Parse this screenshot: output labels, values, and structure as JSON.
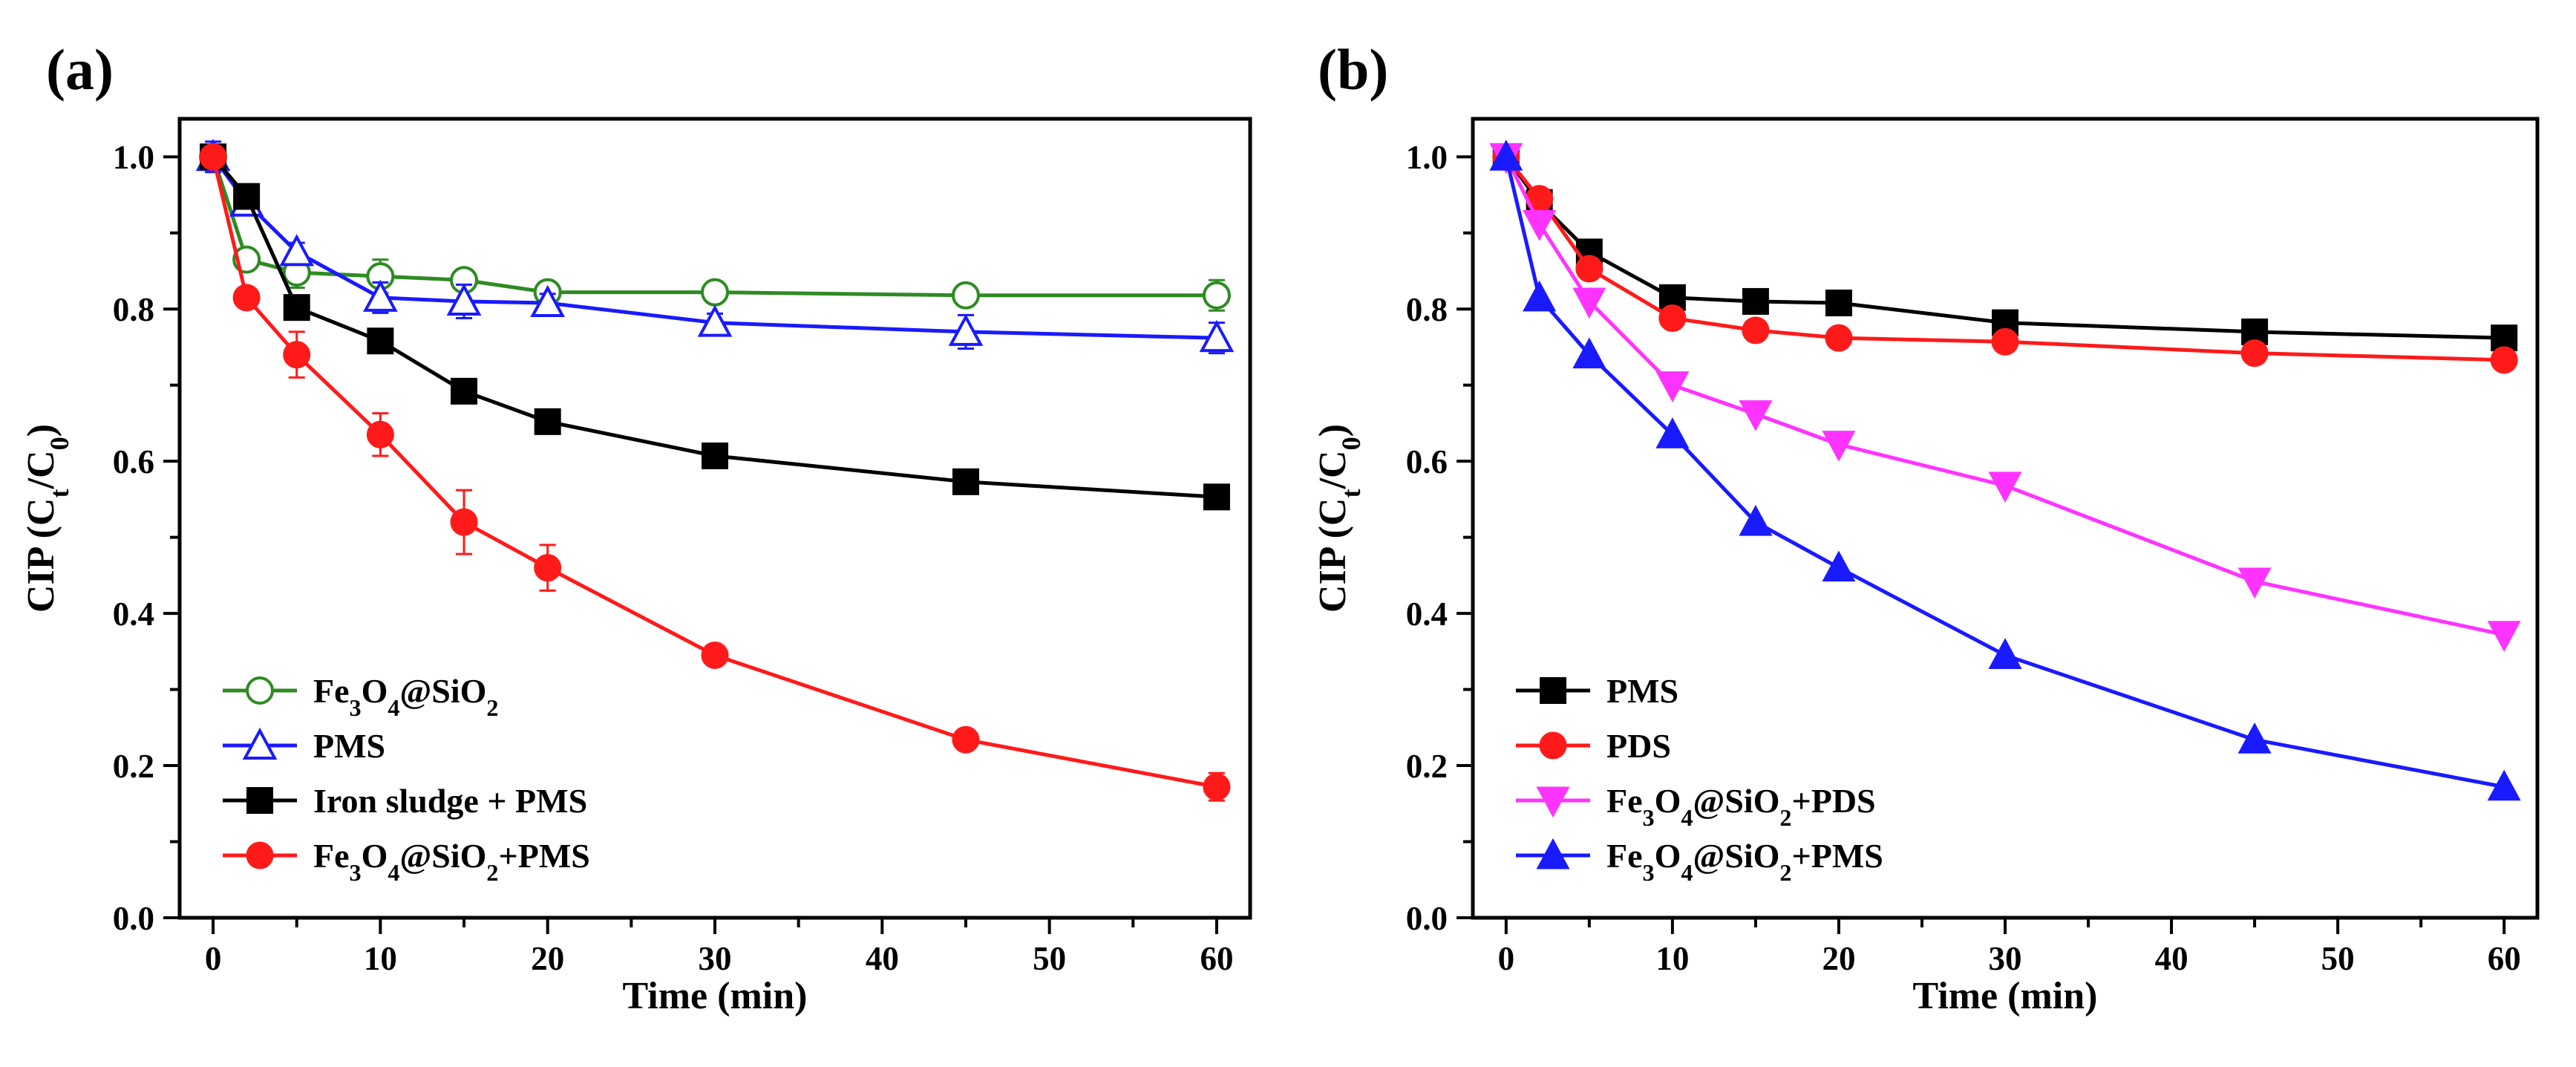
{
  "chart_data": [
    {
      "panel": "(a)",
      "type": "line",
      "xlabel": "Time (min)",
      "ylabel": "CIP (Ct/C0)",
      "ylabel_parts": {
        "lead": "CIP (C",
        "sub1": "t",
        "mid": "/C",
        "sub2": "0",
        "tail": ")"
      },
      "xlim": [
        -2,
        62
      ],
      "ylim": [
        0,
        1.05
      ],
      "xticks": [
        0,
        10,
        20,
        30,
        40,
        50,
        60
      ],
      "yticks": [
        0.0,
        0.2,
        0.4,
        0.6,
        0.8,
        1.0
      ],
      "ytick_labels": [
        "0.0",
        "0.2",
        "0.4",
        "0.6",
        "0.8",
        "1.0"
      ],
      "legend_position": "lower-left",
      "x": [
        0,
        2,
        5,
        10,
        15,
        20,
        30,
        45,
        60
      ],
      "series": [
        {
          "name": "Fe3O4@SiO2",
          "legend": [
            [
              "Fe",
              ""
            ],
            [
              "3",
              "sub"
            ],
            [
              "O",
              ""
            ],
            [
              "4",
              "sub"
            ],
            [
              "@SiO",
              ""
            ],
            [
              "2",
              "sub"
            ]
          ],
          "color": "#2e8b22",
          "marker": "circle-open",
          "values": [
            1.0,
            0.865,
            0.848,
            0.843,
            0.838,
            0.822,
            0.822,
            0.818,
            0.818
          ],
          "errors": [
            0.01,
            0.008,
            0.02,
            0.022,
            0.012,
            0.01,
            0.012,
            0.012,
            0.02
          ]
        },
        {
          "name": "PMS",
          "legend": [
            [
              "PMS",
              ""
            ]
          ],
          "color": "#1a1aff",
          "marker": "triangle-open",
          "values": [
            1.0,
            0.94,
            0.875,
            0.815,
            0.81,
            0.808,
            0.782,
            0.77,
            0.762
          ],
          "errors": [
            0.02,
            0.01,
            0.012,
            0.02,
            0.022,
            0.012,
            0.012,
            0.022,
            0.02
          ]
        },
        {
          "name": "Iron sludge + PMS",
          "legend": [
            [
              "Iron sludge + PMS",
              ""
            ]
          ],
          "color": "#000000",
          "marker": "square",
          "values": [
            1.0,
            0.948,
            0.802,
            0.758,
            0.692,
            0.652,
            0.607,
            0.573,
            0.553
          ],
          "errors": [
            0.005,
            0.006,
            0.005,
            0.006,
            0.006,
            0.006,
            0.006,
            0.006,
            0.006
          ]
        },
        {
          "name": "Fe3O4@SiO2+PMS",
          "legend": [
            [
              "Fe",
              ""
            ],
            [
              "3",
              "sub"
            ],
            [
              "O",
              ""
            ],
            [
              "4",
              "sub"
            ],
            [
              "@SiO",
              ""
            ],
            [
              "2",
              "sub"
            ],
            [
              "+PMS",
              ""
            ]
          ],
          "color": "#ff1a1a",
          "marker": "circle",
          "values": [
            1.0,
            0.815,
            0.74,
            0.635,
            0.52,
            0.46,
            0.345,
            0.234,
            0.172
          ],
          "errors": [
            0.01,
            0.008,
            0.03,
            0.028,
            0.042,
            0.03,
            0.012,
            0.008,
            0.018
          ]
        }
      ]
    },
    {
      "panel": "(b)",
      "type": "line",
      "xlabel": "Time (min)",
      "ylabel": "CIP (Ct/C0)",
      "ylabel_parts": {
        "lead": "CIP (C",
        "sub1": "t",
        "mid": "/C",
        "sub2": "0",
        "tail": ")"
      },
      "xlim": [
        -2,
        62
      ],
      "ylim": [
        0,
        1.05
      ],
      "xticks": [
        0,
        10,
        20,
        30,
        40,
        50,
        60
      ],
      "yticks": [
        0.0,
        0.2,
        0.4,
        0.6,
        0.8,
        1.0
      ],
      "ytick_labels": [
        "0.0",
        "0.2",
        "0.4",
        "0.6",
        "0.8",
        "1.0"
      ],
      "legend_position": "lower-left",
      "x": [
        0,
        2,
        5,
        10,
        15,
        20,
        30,
        45,
        60
      ],
      "series": [
        {
          "name": "PMS",
          "legend": [
            [
              "PMS",
              ""
            ]
          ],
          "color": "#000000",
          "marker": "square",
          "values": [
            1.0,
            0.94,
            0.875,
            0.815,
            0.81,
            0.808,
            0.782,
            0.77,
            0.762
          ]
        },
        {
          "name": "PDS",
          "legend": [
            [
              "PDS",
              ""
            ]
          ],
          "color": "#ff1a1a",
          "marker": "circle",
          "values": [
            1.0,
            0.945,
            0.853,
            0.788,
            0.772,
            0.762,
            0.757,
            0.742,
            0.733
          ]
        },
        {
          "name": "Fe3O4@SiO2+PDS",
          "legend": [
            [
              "Fe",
              ""
            ],
            [
              "3",
              "sub"
            ],
            [
              "O",
              ""
            ],
            [
              "4",
              "sub"
            ],
            [
              "@SiO",
              ""
            ],
            [
              "2",
              "sub"
            ],
            [
              "+PDS",
              ""
            ]
          ],
          "color": "#ff33ff",
          "marker": "triangle-down",
          "values": [
            1.0,
            0.912,
            0.81,
            0.7,
            0.662,
            0.622,
            0.568,
            0.442,
            0.372
          ]
        },
        {
          "name": "Fe3O4@SiO2+PMS",
          "legend": [
            [
              "Fe",
              ""
            ],
            [
              "3",
              "sub"
            ],
            [
              "O",
              ""
            ],
            [
              "4",
              "sub"
            ],
            [
              "@SiO",
              ""
            ],
            [
              "2",
              "sub"
            ],
            [
              "+PMS",
              ""
            ]
          ],
          "color": "#1a1aff",
          "marker": "triangle",
          "values": [
            1.0,
            0.815,
            0.74,
            0.635,
            0.52,
            0.46,
            0.345,
            0.234,
            0.172
          ]
        }
      ]
    }
  ]
}
